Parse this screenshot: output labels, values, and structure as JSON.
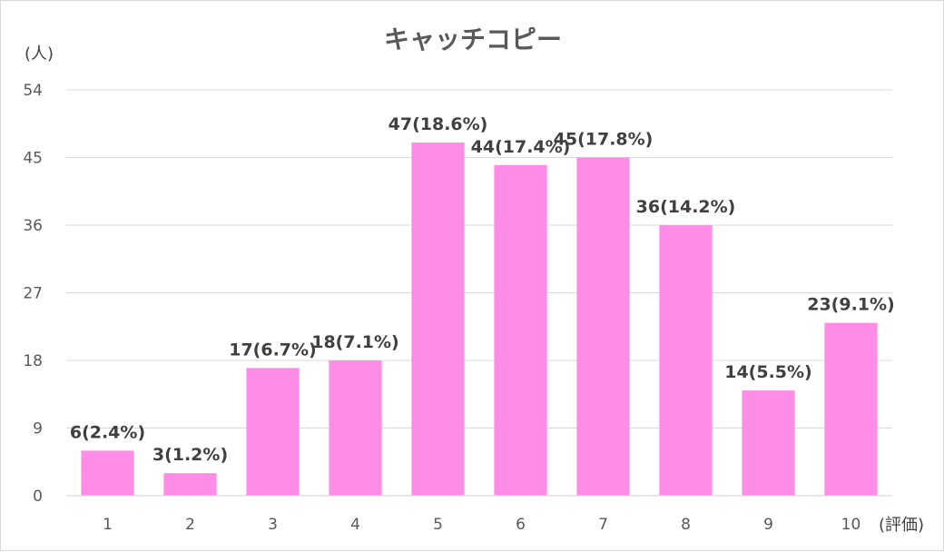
{
  "chart_data": {
    "type": "bar",
    "title": "キャッチコピー",
    "ylabel": "(人)",
    "xlabel": "(評価)",
    "categories": [
      "1",
      "2",
      "3",
      "4",
      "5",
      "6",
      "7",
      "8",
      "9",
      "10"
    ],
    "values": [
      6,
      3,
      17,
      18,
      47,
      44,
      45,
      36,
      14,
      23
    ],
    "data_labels": [
      "6(2.4%)",
      "3(1.2%)",
      "17(6.7%)",
      "18(7.1%)",
      "47(18.6%)",
      "44(17.4%)",
      "45(17.8%)",
      "36(14.2%)",
      "14(5.5%)",
      "23(9.1%)"
    ],
    "yticks": [
      0,
      9,
      18,
      27,
      36,
      45,
      54
    ],
    "ylim": [
      0,
      54
    ],
    "grid": true,
    "legend": "none",
    "bar_color": "#ff8ce6"
  }
}
